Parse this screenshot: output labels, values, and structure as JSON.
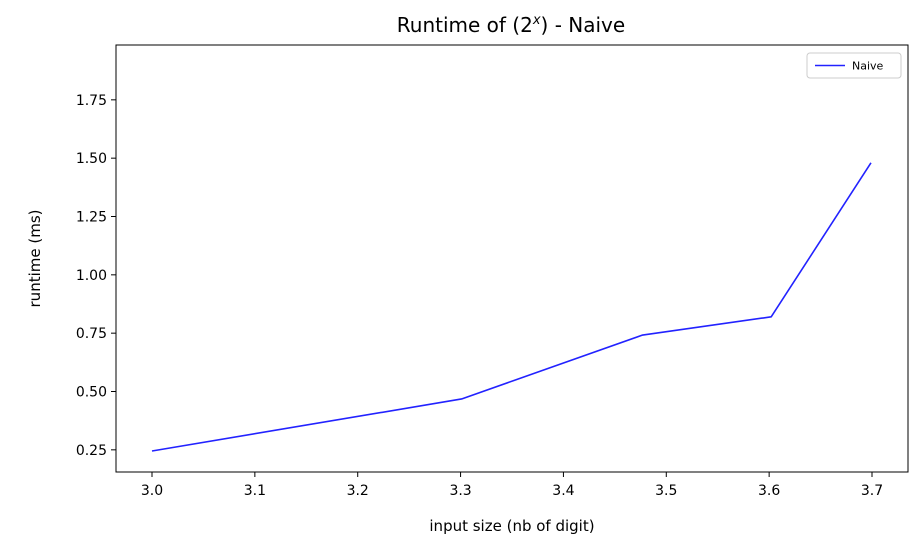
{
  "chart_data": {
    "type": "line",
    "title": "Runtime of (2",
    "title_sup": "x",
    "title_suffix": ") - Naive",
    "xlabel": "input size (nb of digit)",
    "ylabel": "runtime (ms)",
    "xlim": [
      2.965,
      3.735
    ],
    "ylim": [
      0.155,
      1.985
    ],
    "xticks": [
      3.0,
      3.1,
      3.2,
      3.3,
      3.4,
      3.5,
      3.6,
      3.7
    ],
    "xtick_labels": [
      "3.0",
      "3.1",
      "3.2",
      "3.3",
      "3.4",
      "3.5",
      "3.6",
      "3.7"
    ],
    "yticks": [
      0.25,
      0.5,
      0.75,
      1.0,
      1.25,
      1.5,
      1.75
    ],
    "ytick_labels": [
      "0.25",
      "0.50",
      "0.75",
      "1.00",
      "1.25",
      "1.50",
      "1.75"
    ],
    "grid": false,
    "legend_position": "top-right",
    "series": [
      {
        "name": "Naive",
        "color": "#2222ff",
        "x": [
          3.0,
          3.301,
          3.477,
          3.602,
          3.699
        ],
        "y": [
          0.245,
          0.468,
          0.742,
          0.82,
          1.48
        ]
      }
    ]
  }
}
